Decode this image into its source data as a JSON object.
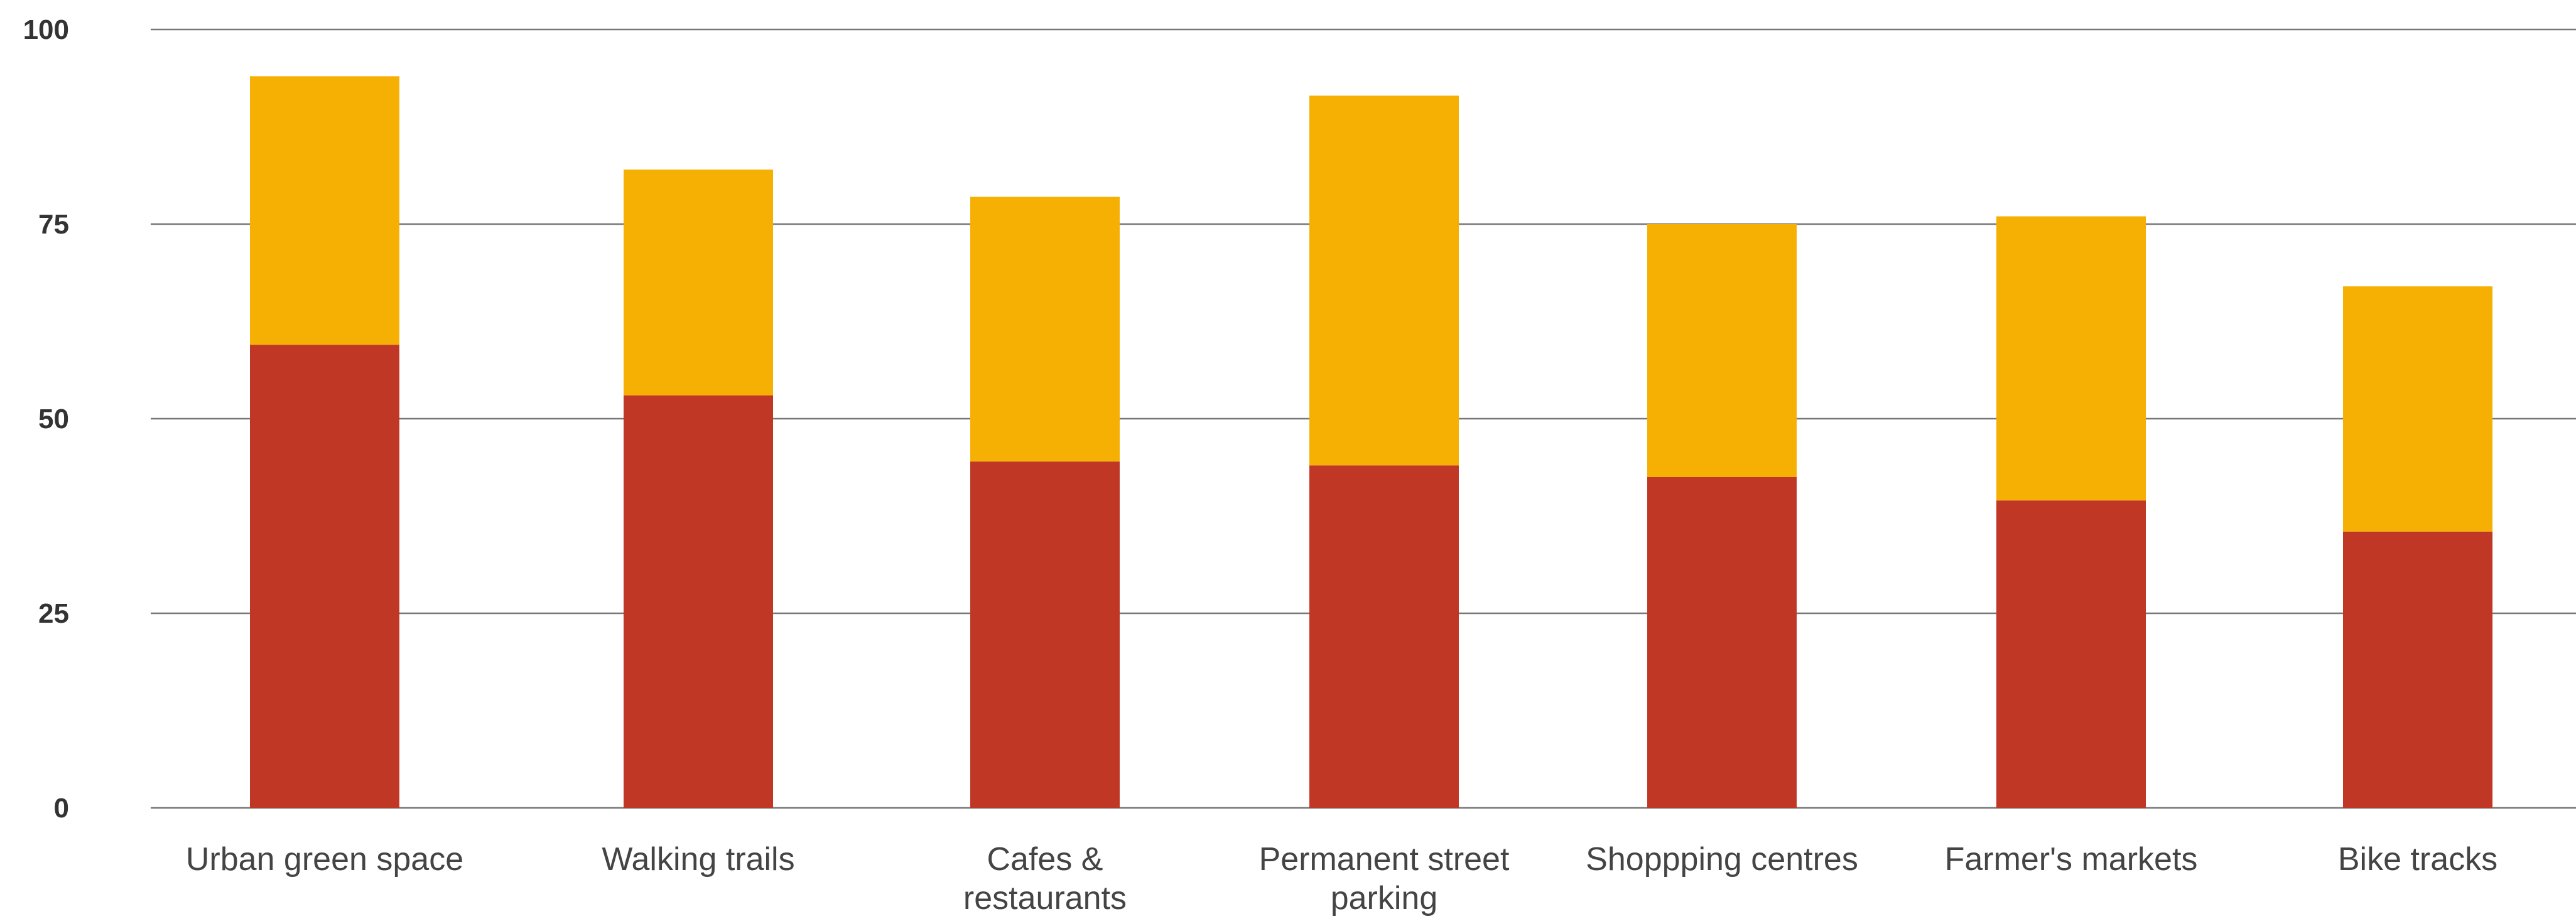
{
  "chart_data": {
    "type": "bar",
    "stacked": true,
    "categories": [
      [
        "Urban green space"
      ],
      [
        "Walking trails"
      ],
      [
        "Cafes &",
        "restaurants"
      ],
      [
        "Permanent street",
        "parking"
      ],
      [
        "Shoppping centres"
      ],
      [
        "Farmer's markets"
      ],
      [
        "Bike tracks"
      ]
    ],
    "series": [
      {
        "values": [
          59.5,
          53,
          44.5,
          44,
          42.5,
          39.5,
          35.5
        ],
        "color": "#C13725"
      },
      {
        "values": [
          34.5,
          29,
          34,
          47.5,
          32.5,
          36.5,
          31.5
        ],
        "color": "#F5B003"
      }
    ],
    "ylim": [
      0,
      100
    ],
    "yticks": [
      0,
      25,
      50,
      75,
      100
    ],
    "grid": true,
    "title": "",
    "xlabel": "",
    "ylabel": ""
  }
}
